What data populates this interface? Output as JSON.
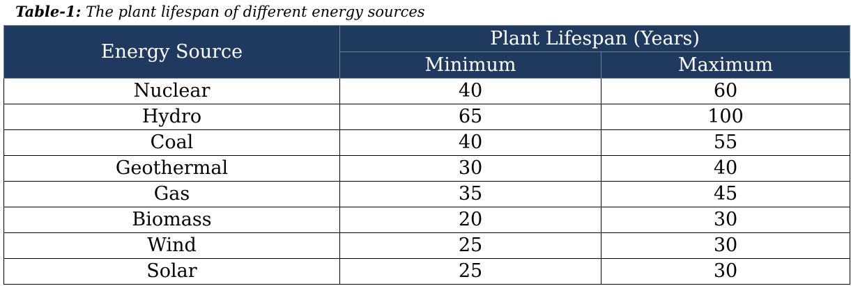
{
  "caption": {
    "lead": "Table-1:",
    "text": " The plant lifespan of different energy sources"
  },
  "table": {
    "headers": {
      "source": "Energy Source",
      "group": "Plant Lifespan (Years)",
      "min": "Minimum",
      "max": "Maximum"
    },
    "rows": [
      {
        "source": "Nuclear",
        "min": "40",
        "max": "60"
      },
      {
        "source": "Hydro",
        "min": "65",
        "max": "100"
      },
      {
        "source": "Coal",
        "min": "40",
        "max": "55"
      },
      {
        "source": "Geothermal",
        "min": "30",
        "max": "40"
      },
      {
        "source": "Gas",
        "min": "35",
        "max": "45"
      },
      {
        "source": "Biomass",
        "min": "20",
        "max": "30"
      },
      {
        "source": "Wind",
        "min": "25",
        "max": "30"
      },
      {
        "source": "Solar",
        "min": "25",
        "max": "30"
      }
    ]
  },
  "colors": {
    "header_bg": "#1f3a5e",
    "header_text": "#ffffff",
    "grid": "#000000"
  }
}
